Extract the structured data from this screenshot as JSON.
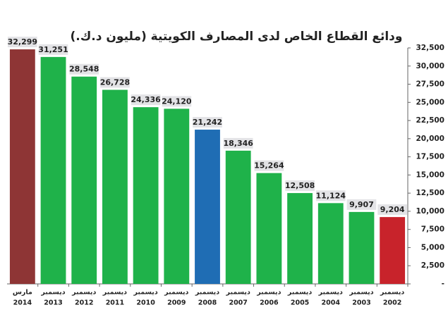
{
  "chart_data": {
    "type": "bar",
    "title": "ودائع القطاع الخاص لدى المصارف الكويتية (مليون د.ك.)",
    "categories": [
      [
        "مارس",
        "2014"
      ],
      [
        "ديسمبر",
        "2013"
      ],
      [
        "ديسمبر",
        "2012"
      ],
      [
        "ديسمبر",
        "2011"
      ],
      [
        "ديسمبر",
        "2010"
      ],
      [
        "ديسمبر",
        "2009"
      ],
      [
        "ديسمبر",
        "2008"
      ],
      [
        "ديسمبر",
        "2007"
      ],
      [
        "ديسمبر",
        "2006"
      ],
      [
        "ديسمبر",
        "2005"
      ],
      [
        "ديسمبر",
        "2004"
      ],
      [
        "ديسمبر",
        "2003"
      ],
      [
        "ديسمبر",
        "2002"
      ]
    ],
    "values": [
      32299,
      31251,
      28548,
      26728,
      24336,
      24120,
      21242,
      18346,
      15264,
      12508,
      11124,
      9907,
      9204
    ],
    "value_labels": [
      "32,299",
      "31,251",
      "28,548",
      "26,728",
      "24,336",
      "24,120",
      "21,242",
      "18,346",
      "15,264",
      "12,508",
      "11,124",
      "9,907",
      "9,204"
    ],
    "colors": [
      "#8e3535",
      "#1fb24a",
      "#1fb24a",
      "#1fb24a",
      "#1fb24a",
      "#1fb24a",
      "#1f6db4",
      "#1fb24a",
      "#1fb24a",
      "#1fb24a",
      "#1fb24a",
      "#1fb24a",
      "#c8232b"
    ],
    "ylim": [
      0,
      32500
    ],
    "yticks": [
      {
        "value": 0,
        "label": "-"
      },
      {
        "value": 2500,
        "label": "2,500"
      },
      {
        "value": 5000,
        "label": "5,000"
      },
      {
        "value": 7500,
        "label": "7,500"
      },
      {
        "value": 10000,
        "label": "10,000"
      },
      {
        "value": 12500,
        "label": "12,500"
      },
      {
        "value": 15000,
        "label": "15,000"
      },
      {
        "value": 17500,
        "label": "17,500"
      },
      {
        "value": 20000,
        "label": "20,000"
      },
      {
        "value": 22500,
        "label": "22,500"
      },
      {
        "value": 25000,
        "label": "25,000"
      },
      {
        "value": 27500,
        "label": "27,500"
      },
      {
        "value": 30000,
        "label": "30,000"
      },
      {
        "value": 32500,
        "label": "32,500"
      }
    ],
    "yaxis_side": "right"
  }
}
